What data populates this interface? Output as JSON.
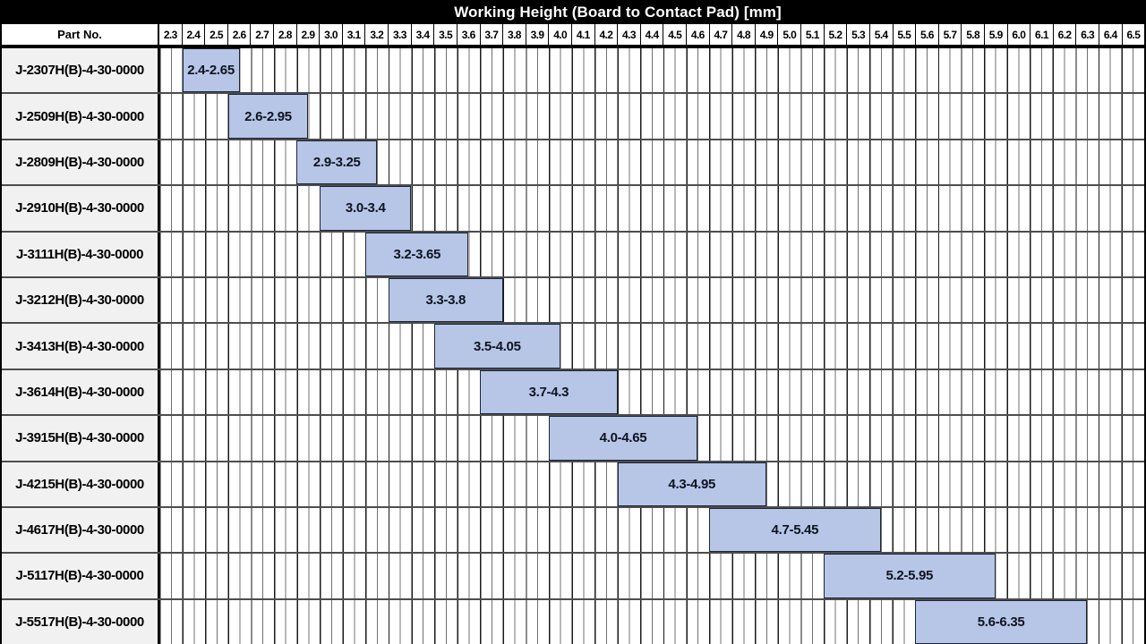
{
  "header": {
    "part_no_label": "Part No."
  },
  "colors": {
    "title_bg": "#000000",
    "title_text": "#ffffff",
    "bar_fill": "#b7c6e7",
    "bar_border": "#1c2536",
    "bar_text": "#0d1320",
    "row_label_bg": "#f1f1f1",
    "grid_major": "#1a1a1a",
    "grid_minor": "#707070",
    "row_separator": "#4d4d4d"
  },
  "chart_data": {
    "type": "bar",
    "subtype": "horizontal-range-gantt",
    "title": "Working Height (Board to Contact Pad) [mm]",
    "axis": {
      "min": 2.3,
      "max": 6.6,
      "major_step": 0.1,
      "minor_step": 0.05,
      "tick_labels": [
        "2.3",
        "2.4",
        "2.5",
        "2.6",
        "2.7",
        "2.8",
        "2.9",
        "3.0",
        "3.1",
        "3.2",
        "3.3",
        "3.4",
        "3.5",
        "3.6",
        "3.7",
        "3.8",
        "3.9",
        "4.0",
        "4.1",
        "4.2",
        "4.3",
        "4.4",
        "4.5",
        "4.6",
        "4.7",
        "4.8",
        "4.9",
        "5.0",
        "5.1",
        "5.2",
        "5.3",
        "5.4",
        "5.5",
        "5.6",
        "5.7",
        "5.8",
        "5.9",
        "6.0",
        "6.1",
        "6.2",
        "6.3",
        "6.4",
        "6.5"
      ]
    },
    "rows": [
      {
        "part_no": "J-2307H(B)-4-30-0000",
        "start": 2.4,
        "end": 2.65,
        "label": "2.4-2.65"
      },
      {
        "part_no": "J-2509H(B)-4-30-0000",
        "start": 2.6,
        "end": 2.95,
        "label": "2.6-2.95"
      },
      {
        "part_no": "J-2809H(B)-4-30-0000",
        "start": 2.9,
        "end": 3.25,
        "label": "2.9-3.25"
      },
      {
        "part_no": "J-2910H(B)-4-30-0000",
        "start": 3.0,
        "end": 3.4,
        "label": "3.0-3.4"
      },
      {
        "part_no": "J-3111H(B)-4-30-0000",
        "start": 3.2,
        "end": 3.65,
        "label": "3.2-3.65"
      },
      {
        "part_no": "J-3212H(B)-4-30-0000",
        "start": 3.3,
        "end": 3.8,
        "label": "3.3-3.8"
      },
      {
        "part_no": "J-3413H(B)-4-30-0000",
        "start": 3.5,
        "end": 4.05,
        "label": "3.5-4.05"
      },
      {
        "part_no": "J-3614H(B)-4-30-0000",
        "start": 3.7,
        "end": 4.3,
        "label": "3.7-4.3"
      },
      {
        "part_no": "J-3915H(B)-4-30-0000",
        "start": 4.0,
        "end": 4.65,
        "label": "4.0-4.65"
      },
      {
        "part_no": "J-4215H(B)-4-30-0000",
        "start": 4.3,
        "end": 4.95,
        "label": "4.3-4.95"
      },
      {
        "part_no": "J-4617H(B)-4-30-0000",
        "start": 4.7,
        "end": 5.45,
        "label": "4.7-5.45"
      },
      {
        "part_no": "J-5117H(B)-4-30-0000",
        "start": 5.2,
        "end": 5.95,
        "label": "5.2-5.95"
      },
      {
        "part_no": "J-5517H(B)-4-30-0000",
        "start": 5.6,
        "end": 6.35,
        "label": "5.6-6.35"
      }
    ]
  }
}
